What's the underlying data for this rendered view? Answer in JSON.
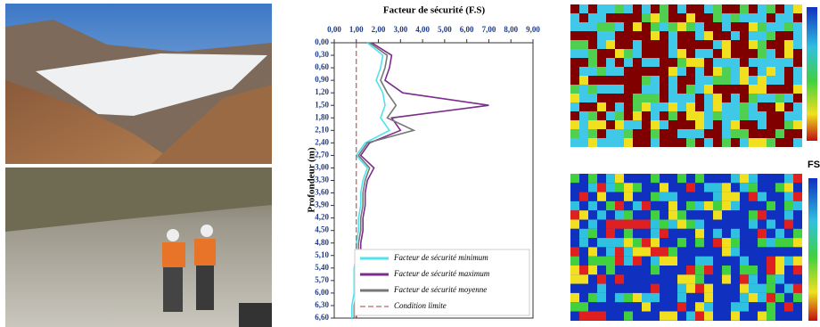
{
  "chart_data": {
    "type": "line",
    "title": "Facteur de sécurité (F.S)",
    "y_label": "Profondeur (m)",
    "x": [
      0,
      0.3,
      0.6,
      0.9,
      1.2,
      1.5,
      1.8,
      2.1,
      2.4,
      2.7,
      3.0,
      3.3,
      3.6,
      3.9,
      4.2,
      4.5,
      4.8,
      5.1,
      5.4,
      5.7,
      6.0,
      6.3,
      6.6
    ],
    "series": [
      {
        "name": "Facteur de sécurité minimum",
        "color": "#4fe3ee",
        "style": "solid",
        "values": [
          1.5,
          2.2,
          2.1,
          1.9,
          2.2,
          2.3,
          2.1,
          2.5,
          1.4,
          1.0,
          1.5,
          1.3,
          1.2,
          1.2,
          1.1,
          1.1,
          1.0,
          1.0,
          0.9,
          0.9,
          0.9,
          0.8,
          0.8
        ]
      },
      {
        "name": "Facteur de sécurité maximum",
        "color": "#7b2c8c",
        "style": "solid",
        "values": [
          1.7,
          2.6,
          2.5,
          2.3,
          3.1,
          7.0,
          2.6,
          3.0,
          1.6,
          1.2,
          1.8,
          1.5,
          1.4,
          1.4,
          1.3,
          1.3,
          1.2,
          1.2,
          1.1,
          1.1,
          1.1,
          1.0,
          1.0
        ]
      },
      {
        "name": "Facteur de sécurité moyenne",
        "color": "#777777",
        "style": "solid",
        "values": [
          1.6,
          2.4,
          2.3,
          2.1,
          2.4,
          2.8,
          2.4,
          3.6,
          1.5,
          1.1,
          1.6,
          1.4,
          1.3,
          1.3,
          1.2,
          1.2,
          1.1,
          1.1,
          1.0,
          1.0,
          1.0,
          0.9,
          0.9
        ]
      },
      {
        "name": "Condition limite",
        "color": "#b03a3a",
        "style": "dashed",
        "values": [
          1,
          1,
          1,
          1,
          1,
          1,
          1,
          1,
          1,
          1,
          1,
          1,
          1,
          1,
          1,
          1,
          1,
          1,
          1,
          1,
          1,
          1,
          1
        ]
      }
    ],
    "fs_lim": [
      0,
      9
    ],
    "fs_ticks": [
      {
        "value": 0,
        "label": "0,00"
      },
      {
        "value": 1,
        "label": "1,00"
      },
      {
        "value": 2,
        "label": "2,00"
      },
      {
        "value": 3,
        "label": "3,00"
      },
      {
        "value": 4,
        "label": "4,00"
      },
      {
        "value": 5,
        "label": "5,00"
      },
      {
        "value": 6,
        "label": "6,00"
      },
      {
        "value": 7,
        "label": "7,00"
      },
      {
        "value": 8,
        "label": "8,00"
      },
      {
        "value": 9,
        "label": "9,00"
      }
    ],
    "depth_lim": [
      0,
      6.6
    ],
    "depth_ticks": [
      {
        "value": 0,
        "label": "0,00"
      },
      {
        "value": 0.3,
        "label": "0,30"
      },
      {
        "value": 0.6,
        "label": "0,60"
      },
      {
        "value": 0.9,
        "label": "0,90"
      },
      {
        "value": 1.2,
        "label": "1,20"
      },
      {
        "value": 1.5,
        "label": "1,50"
      },
      {
        "value": 1.8,
        "label": "1,80"
      },
      {
        "value": 2.1,
        "label": "2,10"
      },
      {
        "value": 2.4,
        "label": "2,40"
      },
      {
        "value": 2.7,
        "label": "2,70"
      },
      {
        "value": 3.0,
        "label": "3,00"
      },
      {
        "value": 3.3,
        "label": "3,30"
      },
      {
        "value": 3.6,
        "label": "3,60"
      },
      {
        "value": 3.9,
        "label": "3,90"
      },
      {
        "value": 4.2,
        "label": "4,20"
      },
      {
        "value": 4.5,
        "label": "4,50"
      },
      {
        "value": 4.8,
        "label": "4,80"
      },
      {
        "value": 5.1,
        "label": "5,10"
      },
      {
        "value": 5.4,
        "label": "5,40"
      },
      {
        "value": 5.7,
        "label": "5,70"
      },
      {
        "value": 6.0,
        "label": "6,00"
      },
      {
        "value": 6.3,
        "label": "6,30"
      },
      {
        "value": 6.6,
        "label": "6,60"
      }
    ],
    "legend": "lower-right"
  },
  "side_panels": {
    "legend_title": "FS"
  }
}
